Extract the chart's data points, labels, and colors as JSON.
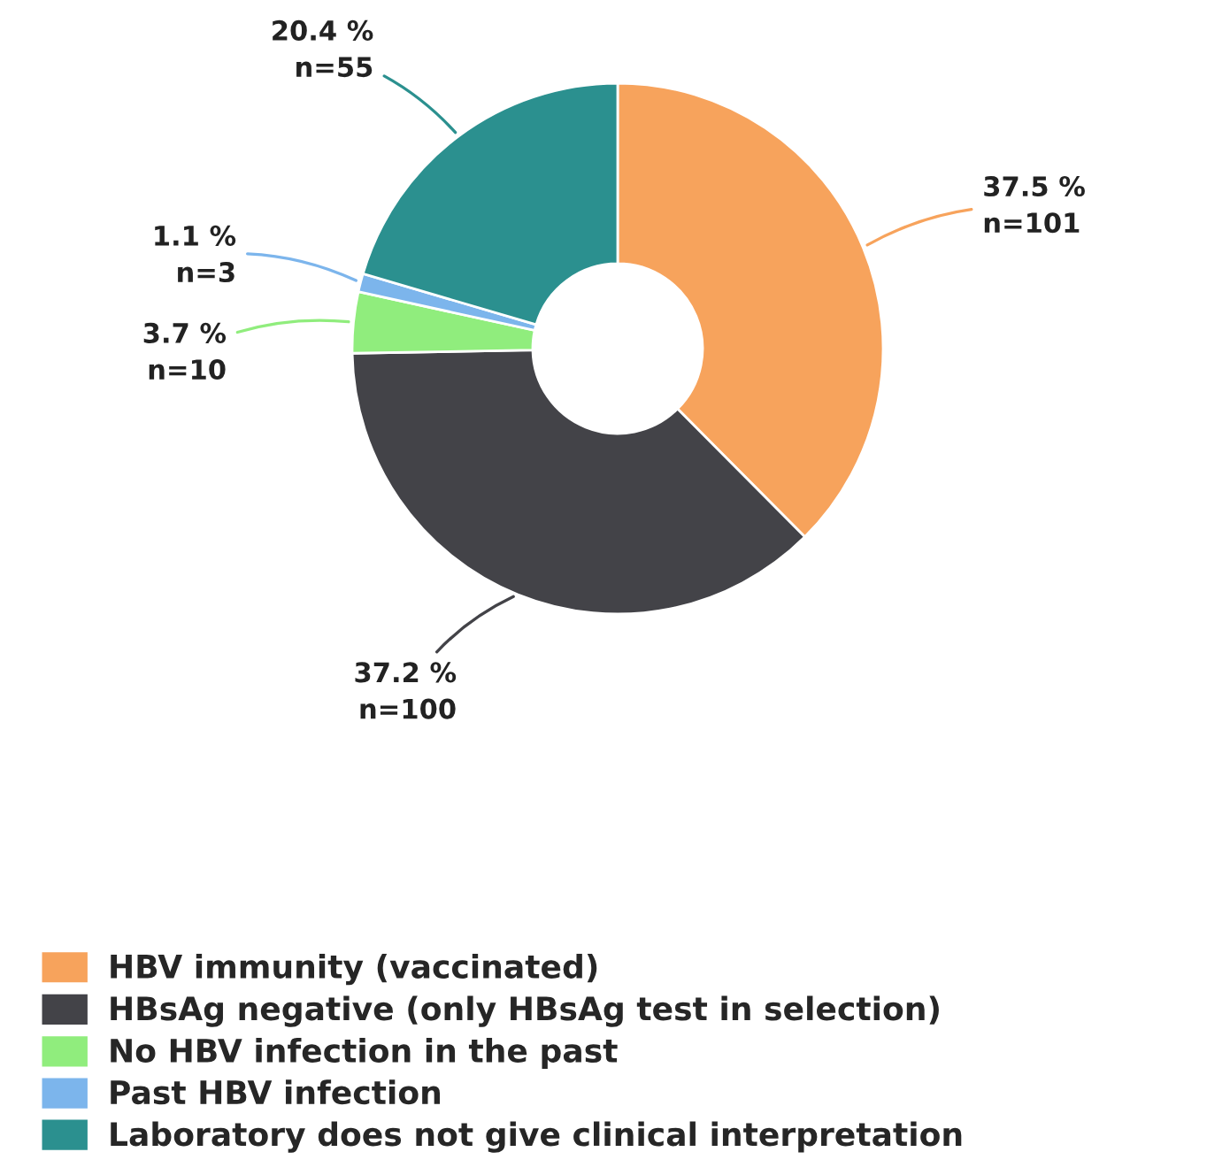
{
  "chart_data": {
    "type": "donut",
    "categories": [
      "HBV immunity (vaccinated)",
      "HBsAg negative (only HBsAg test in selection)",
      "No HBV infection in the past",
      "Past HBV infection",
      "Laboratory does not give clinical interpretation"
    ],
    "values": [
      101,
      100,
      10,
      3,
      55
    ],
    "colors": [
      "#f7a35c",
      "#434348",
      "#90ed7d",
      "#7cb5ec",
      "#2b908f"
    ],
    "value_labels": [
      "37.5 %\nn=101",
      "37.2 %\nn=100",
      "3.7 %\nn=10",
      "1.1 %\nn=3",
      "20.4 %\nn=55"
    ],
    "legend": "bottom"
  }
}
